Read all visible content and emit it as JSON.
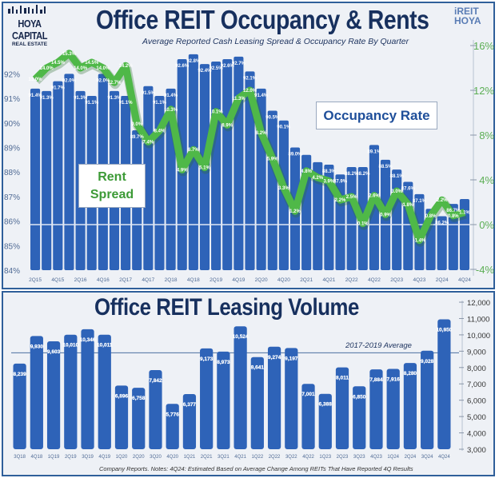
{
  "header": {
    "logo_left": {
      "line1": "HOYA CAPITAL",
      "line2": "REAL ESTATE"
    },
    "logo_right": {
      "line1": "iREIT",
      "line2": "HOYA"
    }
  },
  "chart_data": [
    {
      "type": "bar+line",
      "title": "Office REIT Occupancy & Rents",
      "subtitle": "Average Reported Cash Leasing Spread & Occupancy Rate By Quarter",
      "annotations": {
        "occupancy": "Occupancy Rate",
        "rent": "Rent Spread"
      },
      "categories": [
        "2Q15",
        "3Q15",
        "4Q15",
        "1Q16",
        "2Q16",
        "3Q16",
        "4Q16",
        "1Q17",
        "2Q17",
        "3Q17",
        "4Q17",
        "1Q18",
        "2Q18",
        "3Q18",
        "4Q18",
        "1Q19",
        "2Q19",
        "3Q19",
        "4Q19",
        "1Q20",
        "2Q20",
        "3Q20",
        "4Q20",
        "1Q21",
        "2Q21",
        "3Q21",
        "4Q21",
        "1Q22",
        "2Q22",
        "3Q22",
        "4Q22",
        "1Q23",
        "2Q23",
        "3Q23",
        "4Q23",
        "1Q24",
        "2Q24",
        "3Q24",
        "4Q24"
      ],
      "tick_labels": [
        "2Q15",
        "4Q15",
        "2Q16",
        "4Q16",
        "2Q17",
        "4Q17",
        "2Q18",
        "4Q18",
        "2Q19",
        "4Q19",
        "2Q20",
        "4Q20",
        "2Q21",
        "4Q21",
        "2Q22",
        "4Q22",
        "2Q23",
        "4Q23",
        "2Q24",
        "4Q24"
      ],
      "occupancy": [
        91.4,
        91.3,
        91.7,
        92.0,
        91.3,
        91.1,
        92.0,
        91.3,
        91.1,
        89.7,
        91.5,
        91.1,
        91.4,
        92.6,
        92.8,
        92.4,
        92.5,
        92.6,
        92.7,
        92.1,
        91.4,
        90.5,
        90.1,
        89.0,
        88.7,
        88.4,
        88.3,
        87.9,
        88.2,
        88.2,
        89.1,
        88.5,
        88.1,
        87.6,
        87.1,
        86.5,
        86.2,
        86.7,
        86.9
      ],
      "occupancy_labels": [
        "91.4%",
        "91.3%",
        "91.7%",
        "92.0%",
        "91.3%",
        "91.1%",
        "92.0%",
        "91.3%",
        "91.1%",
        "89.7%",
        "91.5%",
        "91.1%",
        "91.4%",
        "92.6%",
        "92.8%",
        "92.4%",
        "92.5%",
        "92.6%",
        "92.7%",
        "92.1%",
        "91.4%",
        "90.5%",
        "90.1%",
        "89.0%",
        "",
        "",
        "88.3%",
        "87.9%",
        "88.2%",
        "88.2%",
        "89.1%",
        "88.5%",
        "88.1%",
        "87.6%",
        "87.1%",
        "",
        "86.2%",
        "86.7%",
        ""
      ],
      "rent_spread": [
        13.0,
        14.0,
        14.5,
        15.3,
        14.0,
        14.5,
        14.0,
        12.7,
        14.2,
        9.0,
        7.4,
        8.4,
        10.3,
        4.9,
        6.7,
        5.1,
        10.1,
        8.9,
        11.3,
        12.0,
        8.2,
        5.9,
        3.3,
        1.2,
        4.8,
        4.2,
        3.9,
        2.2,
        2.5,
        0.1,
        2.6,
        0.9,
        3.0,
        1.8,
        -1.4,
        0.8,
        2.2,
        0.8,
        1.1
      ],
      "left_axis": {
        "ticks": [
          "84%",
          "85%",
          "86%",
          "87%",
          "88%",
          "89%",
          "90%",
          "91%",
          "92%"
        ],
        "range": [
          84,
          93.5
        ]
      },
      "right_axis": {
        "ticks": [
          "-4%",
          "0%",
          "4%",
          "8%",
          "12%",
          "16%"
        ],
        "range": [
          -4,
          16
        ]
      },
      "colors": {
        "bars": "#2e63b8",
        "line": "#4fb848",
        "title": "#17305e"
      }
    },
    {
      "type": "bar",
      "title": "Office REIT Leasing Volume",
      "categories": [
        "3Q18",
        "4Q18",
        "1Q19",
        "2Q19",
        "3Q19",
        "4Q19",
        "1Q20",
        "2Q20",
        "3Q20",
        "4Q20",
        "1Q21",
        "2Q21",
        "3Q21",
        "4Q21",
        "1Q22",
        "2Q22",
        "3Q22",
        "4Q22",
        "1Q23",
        "2Q23",
        "3Q23",
        "4Q23",
        "1Q24",
        "2Q24",
        "3Q24",
        "4Q24"
      ],
      "values": [
        8239,
        9930,
        9603,
        10010,
        10346,
        10011,
        6896,
        6758,
        7842,
        5776,
        6377,
        9173,
        8973,
        10524,
        8641,
        9274,
        9197,
        7001,
        6388,
        8011,
        6850,
        7884,
        7916,
        8280,
        9028,
        10950
      ],
      "value_labels": [
        "8,239",
        "9,930",
        "9,603",
        "10,010",
        "10,346",
        "10,011",
        "6,896",
        "6,758",
        "7,842",
        "5,776",
        "6,377",
        "9,173",
        "8,973",
        "10,524",
        "8,641",
        "9,274",
        "9,197",
        "7,001",
        "6,388",
        "8,011",
        "6,850",
        "7,884",
        "7,916",
        "8,280",
        "9,028",
        "10,950"
      ],
      "reference_line": {
        "label": "2017-2019 Average",
        "value": 8900
      },
      "y_axis": {
        "ticks": [
          "3,000",
          "4,000",
          "5,000",
          "6,000",
          "7,000",
          "8,000",
          "9,000",
          "10,000",
          "11,000",
          "12,000"
        ],
        "range": [
          3000,
          12000
        ]
      },
      "note": "Company Reports. Notes: 4Q24: Estimated Based on Average Change Among REITs That Have Reported 4Q Results",
      "colors": {
        "bars": "#2e63b8"
      }
    }
  ]
}
